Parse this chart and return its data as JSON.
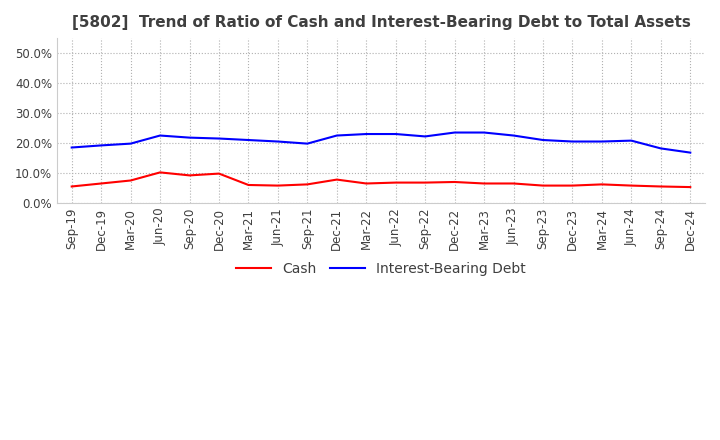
{
  "title": "[5802]  Trend of Ratio of Cash and Interest-Bearing Debt to Total Assets",
  "title_color": "#3f3f3f",
  "background_color": "#ffffff",
  "plot_bg_color": "#ffffff",
  "grid_color": "#b0b0b0",
  "xlabels": [
    "Sep-19",
    "Dec-19",
    "Mar-20",
    "Jun-20",
    "Sep-20",
    "Dec-20",
    "Mar-21",
    "Jun-21",
    "Sep-21",
    "Dec-21",
    "Mar-22",
    "Jun-22",
    "Sep-22",
    "Dec-22",
    "Mar-23",
    "Jun-23",
    "Sep-23",
    "Dec-23",
    "Mar-24",
    "Jun-24",
    "Sep-24",
    "Dec-24"
  ],
  "cash": [
    5.5,
    6.5,
    7.5,
    10.2,
    9.2,
    9.8,
    6.0,
    5.8,
    6.2,
    7.8,
    6.5,
    6.8,
    6.8,
    7.0,
    6.5,
    6.5,
    5.8,
    5.8,
    6.2,
    5.8,
    5.5,
    5.3
  ],
  "ibd": [
    18.5,
    19.2,
    19.8,
    22.5,
    21.8,
    21.5,
    21.0,
    20.5,
    19.8,
    22.5,
    23.0,
    23.0,
    22.2,
    23.5,
    23.5,
    22.5,
    21.0,
    20.5,
    20.5,
    20.8,
    18.2,
    16.8
  ],
  "cash_color": "#ff0000",
  "ibd_color": "#0000ff",
  "ylim": [
    0.0,
    55.0
  ],
  "yticks": [
    0.0,
    10.0,
    20.0,
    30.0,
    40.0,
    50.0
  ],
  "legend_cash": "Cash",
  "legend_ibd": "Interest-Bearing Debt",
  "title_fontsize": 11,
  "axis_fontsize": 8.5,
  "legend_fontsize": 10
}
